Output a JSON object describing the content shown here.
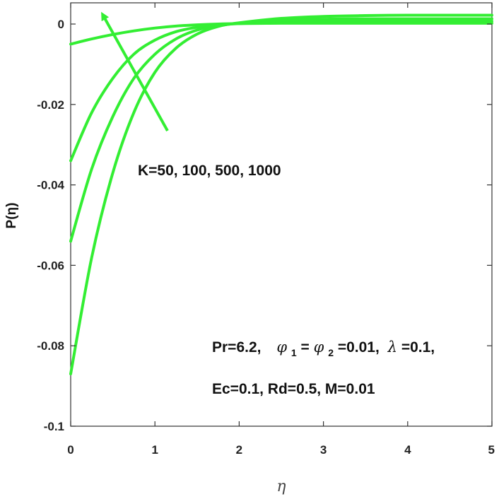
{
  "chart_data": {
    "type": "line",
    "title": "",
    "xlabel": "η",
    "ylabel": "P(η)",
    "xlim": [
      0,
      5
    ],
    "ylim": [
      -0.1,
      0.003
    ],
    "x_ticks": [
      "0",
      "1",
      "2",
      "3",
      "4",
      "5"
    ],
    "y_ticks": [
      "0",
      "-0.02",
      "-0.04",
      "-0.06",
      "-0.08",
      "-0.1"
    ],
    "grid": false,
    "line_color": "#33ee33",
    "series": [
      {
        "x": [
          0,
          0.25,
          0.5,
          0.75,
          1.0,
          1.25,
          1.5,
          1.75,
          2.0,
          2.5,
          3.0,
          3.5,
          4.0,
          4.5,
          5.0
        ],
        "values": [
          -0.005,
          -0.0037,
          -0.0026,
          -0.0017,
          -0.001,
          -0.0005,
          -0.0002,
          0.0,
          0.0001,
          0.0002,
          0.0002,
          0.0002,
          0.0002,
          0.0002,
          0.0002
        ]
      },
      {
        "x": [
          0,
          0.25,
          0.5,
          0.75,
          1.0,
          1.25,
          1.5,
          1.75,
          2.0,
          2.5,
          3.0,
          3.5,
          4.0,
          4.5,
          5.0
        ],
        "values": [
          -0.034,
          -0.022,
          -0.0135,
          -0.0075,
          -0.004,
          -0.0019,
          -0.0008,
          -0.0002,
          0.0001,
          0.0005,
          0.0007,
          0.0007,
          0.0007,
          0.0007,
          0.0007
        ]
      },
      {
        "x": [
          0,
          0.25,
          0.5,
          0.75,
          1.0,
          1.25,
          1.5,
          1.75,
          2.0,
          2.5,
          3.0,
          3.5,
          4.0,
          4.5,
          5.0
        ],
        "values": [
          -0.054,
          -0.036,
          -0.023,
          -0.0135,
          -0.0075,
          -0.0037,
          -0.0015,
          -0.0004,
          0.0002,
          0.0009,
          0.0012,
          0.0013,
          0.0013,
          0.0013,
          0.0013
        ]
      },
      {
        "x": [
          0,
          0.25,
          0.5,
          0.75,
          1.0,
          1.25,
          1.5,
          1.75,
          2.0,
          2.5,
          3.0,
          3.5,
          4.0,
          4.5,
          5.0
        ],
        "values": [
          -0.087,
          -0.058,
          -0.037,
          -0.022,
          -0.012,
          -0.006,
          -0.0025,
          -0.0006,
          0.0003,
          0.0014,
          0.0019,
          0.0021,
          0.0022,
          0.0022,
          0.0022
        ]
      }
    ],
    "annotations": {
      "k_label": "K=50, 100, 500, 1000",
      "params_pr": "Pr=6.2,",
      "params_phi1": "φ",
      "params_phi1_sub": "1",
      "params_eq1": "=",
      "params_phi2": "φ",
      "params_phi2_sub": "2",
      "params_eq2": "=0.01,",
      "params_lambda": "λ",
      "params_lambda_val": "=0.1,",
      "params_line2": "Ec=0.1, Rd=0.5, M=0.01"
    }
  }
}
